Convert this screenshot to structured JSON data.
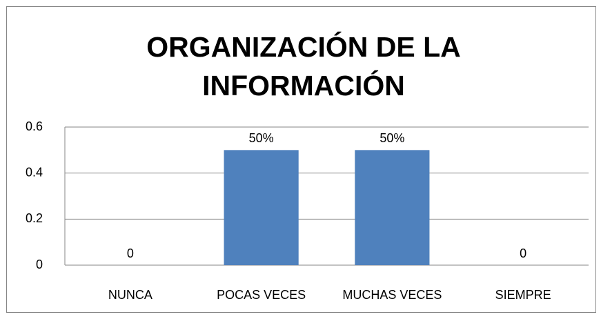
{
  "chart_data": {
    "type": "bar",
    "title": "ORGANIZACIÓN DE LA INFORMACIÓN",
    "categories": [
      "NUNCA",
      "POCAS VECES",
      "MUCHAS VECES",
      "SIEMPRE"
    ],
    "values": [
      0,
      0.5,
      0.5,
      0
    ],
    "value_labels": [
      "0",
      "50%",
      "50%",
      "0"
    ],
    "color": "#4f81bd",
    "ylim": [
      0,
      0.6
    ],
    "yticks": [
      0,
      0.2,
      0.4,
      0.6
    ],
    "grid": true
  }
}
